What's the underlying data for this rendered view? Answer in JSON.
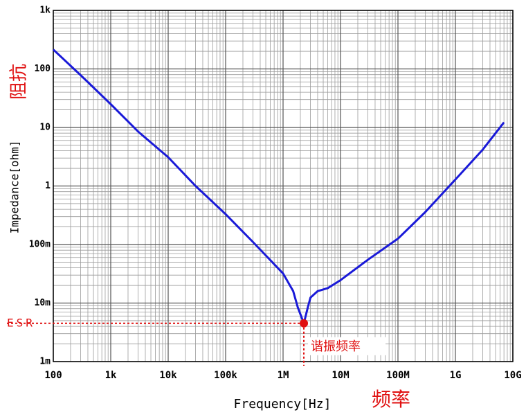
{
  "chart_data": {
    "type": "line",
    "x_label": "Frequency[Hz]",
    "y_label": "Impedance[ohm]",
    "y_label_cn": "阻抗",
    "x_label_cn": "频率",
    "x": [
      100,
      300,
      1000,
      3000,
      10000,
      30000,
      100000,
      300000,
      1000000,
      1500000,
      1800000,
      2300000,
      2700000,
      3000000,
      4000000,
      6000000,
      10000000,
      30000000,
      100000000,
      300000000,
      1000000000,
      3000000000,
      7000000000
    ],
    "values": [
      214,
      78,
      25,
      8.5,
      3.1,
      1.0,
      0.33,
      0.11,
      0.032,
      0.016,
      0.0085,
      0.0045,
      0.0085,
      0.0124,
      0.016,
      0.018,
      0.0246,
      0.055,
      0.126,
      0.36,
      1.29,
      4.2,
      12.2
    ],
    "color": "#1a1ad8",
    "log_x": true,
    "log_y": true,
    "grid": true,
    "minor_grid": true,
    "xlim": [
      100,
      10000000000
    ],
    "ylim": [
      0.001,
      1000
    ],
    "xticks": [
      {
        "value": 100,
        "label": "100"
      },
      {
        "value": 1000,
        "label": "1k"
      },
      {
        "value": 10000,
        "label": "10k"
      },
      {
        "value": 100000,
        "label": "100k"
      },
      {
        "value": 1000000,
        "label": "1M"
      },
      {
        "value": 10000000,
        "label": "10M"
      },
      {
        "value": 100000000,
        "label": "100M"
      },
      {
        "value": 1000000000,
        "label": "1G"
      },
      {
        "value": 10000000000,
        "label": "10G"
      }
    ],
    "yticks": [
      {
        "value": 0.001,
        "label": "1m"
      },
      {
        "value": 0.01,
        "label": "10m"
      },
      {
        "value": 0.1,
        "label": "100m"
      },
      1,
      10,
      100,
      {
        "value": 1000,
        "label": "1k"
      }
    ],
    "annotations": [
      {
        "text": "ESR",
        "x": 2300000,
        "y": 0.0045,
        "color": "#e01010"
      },
      {
        "text": "谐振频率",
        "x": 2300000,
        "y": 0.0045,
        "color": "#e01010"
      }
    ]
  }
}
